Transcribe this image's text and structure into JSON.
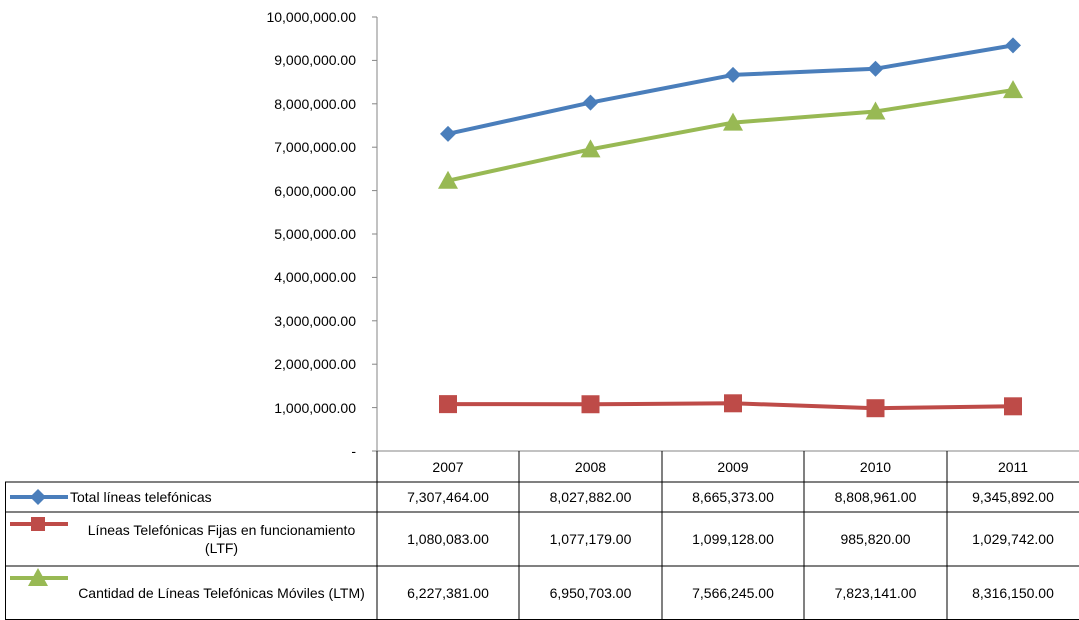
{
  "chart_data": {
    "type": "line",
    "categories": [
      "2007",
      "2008",
      "2009",
      "2010",
      "2011"
    ],
    "series": [
      {
        "name": "Total líneas telefónicas",
        "color": "#4a7ebb",
        "marker": "diamond",
        "values": [
          7307464,
          8027882,
          8665373,
          8808961,
          9345892
        ],
        "value_labels": [
          "7,307,464.00",
          "8,027,882.00",
          "8,665,373.00",
          "8,808,961.00",
          "9,345,892.00"
        ]
      },
      {
        "name": "Líneas Telefónicas Fijas en funcionamiento (LTF)",
        "color": "#be4b48",
        "marker": "square",
        "values": [
          1080083,
          1077179,
          1099128,
          985820,
          1029742
        ],
        "value_labels": [
          "1,080,083.00",
          "1,077,179.00",
          "1,099,128.00",
          "985,820.00",
          "1,029,742.00"
        ]
      },
      {
        "name": "Cantidad de Líneas Telefónicas Móviles (LTM)",
        "color": "#98b954",
        "marker": "triangle",
        "values": [
          6227381,
          6950703,
          7566245,
          7823141,
          8316150
        ],
        "value_labels": [
          "6,227,381.00",
          "6,950,703.00",
          "7,566,245.00",
          "7,823,141.00",
          "8,316,150.00"
        ]
      }
    ],
    "ylim": [
      0,
      10000000
    ],
    "yticks": [
      {
        "value": 0,
        "label": "-"
      },
      {
        "value": 1000000,
        "label": "1,000,000.00"
      },
      {
        "value": 2000000,
        "label": "2,000,000.00"
      },
      {
        "value": 3000000,
        "label": "3,000,000.00"
      },
      {
        "value": 4000000,
        "label": "4,000,000.00"
      },
      {
        "value": 5000000,
        "label": "5,000,000.00"
      },
      {
        "value": 6000000,
        "label": "6,000,000.00"
      },
      {
        "value": 7000000,
        "label": "7,000,000.00"
      },
      {
        "value": 8000000,
        "label": "8,000,000.00"
      },
      {
        "value": 9000000,
        "label": "9,000,000.00"
      },
      {
        "value": 10000000,
        "label": "10,000,000.00"
      }
    ],
    "grid": false
  }
}
